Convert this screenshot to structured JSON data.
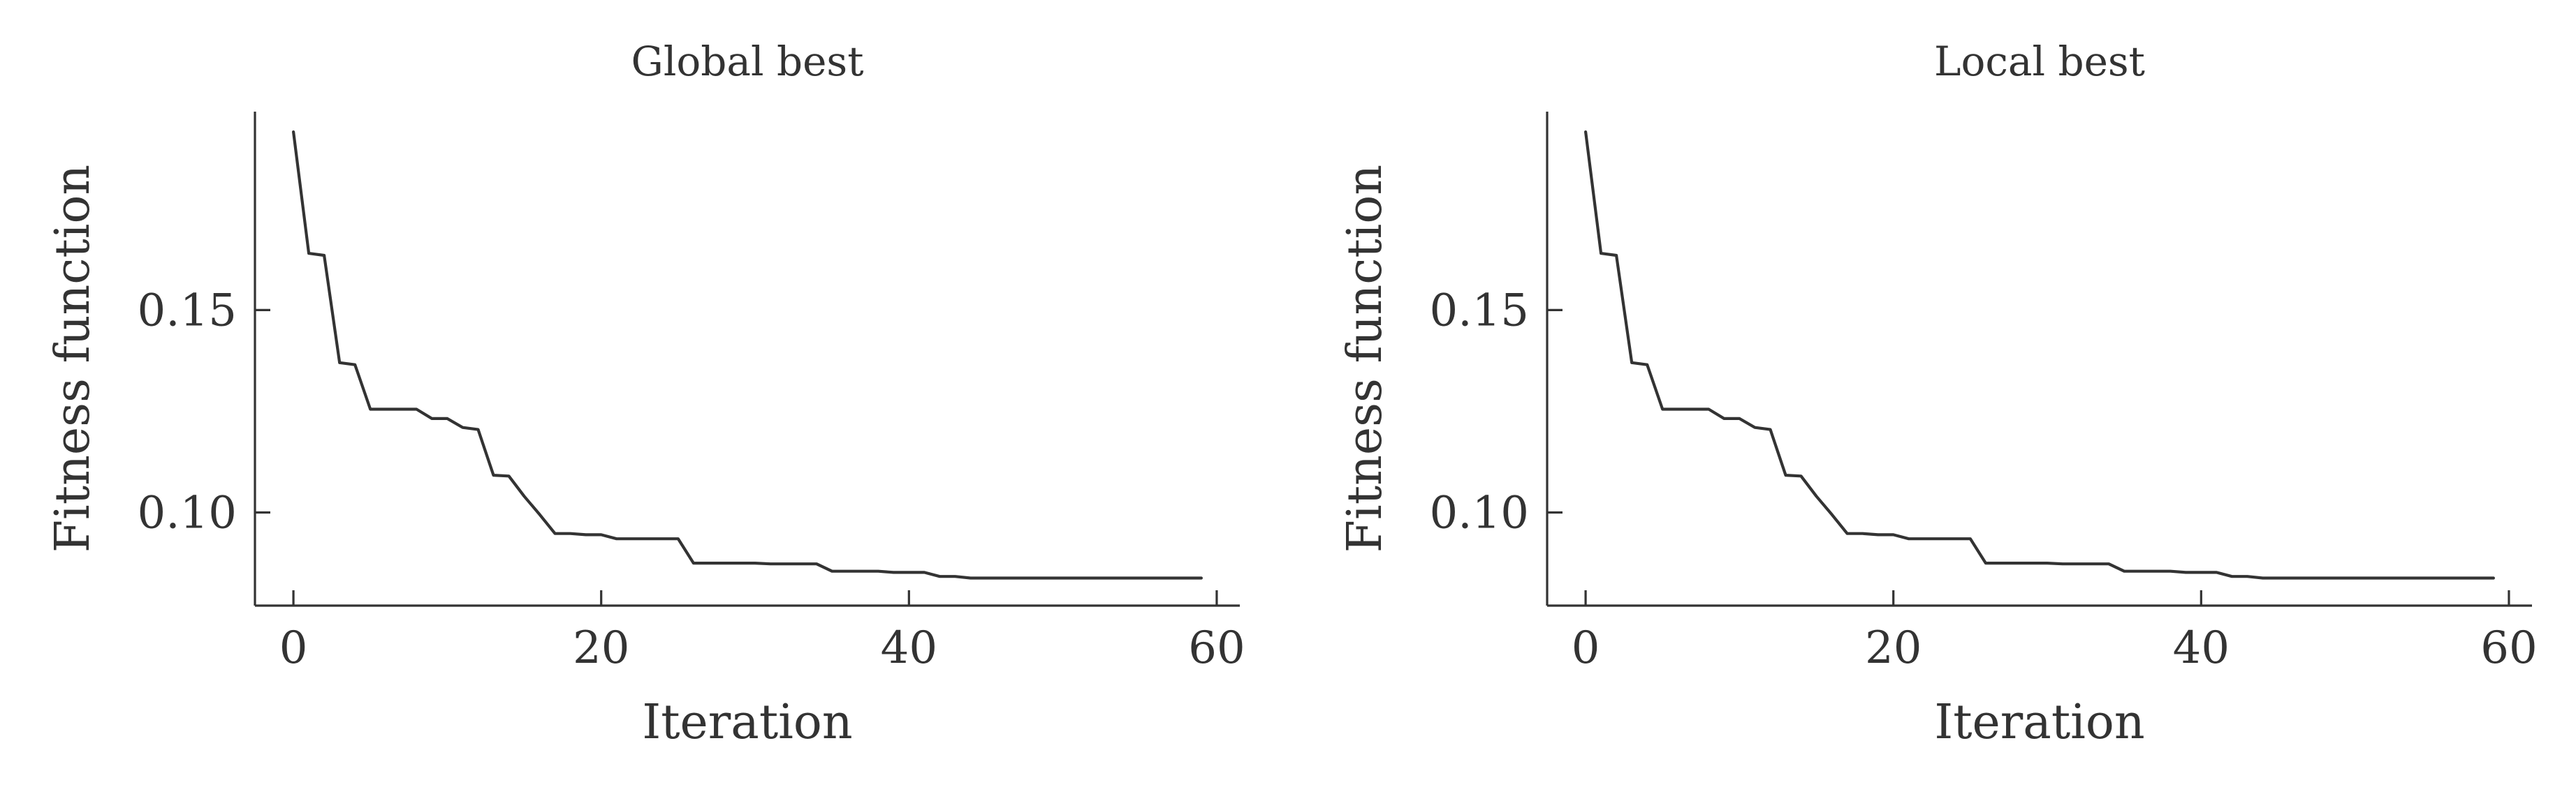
{
  "colors": {
    "background": "#ffffff",
    "axis": "#333333",
    "series_line": "#333333"
  },
  "chart_data": [
    {
      "type": "line",
      "title": "Global best",
      "xlabel": "Iteration",
      "ylabel": "Fitness function",
      "xlim": [
        -2.5,
        61.5
      ],
      "ylim": [
        0.077,
        0.199
      ],
      "xticks": [
        0,
        20,
        40,
        60
      ],
      "yticks": [
        0.1,
        0.15
      ],
      "xtick_labels": [
        "0",
        "20",
        "40",
        "60"
      ],
      "ytick_labels": [
        "0.10",
        "0.15"
      ],
      "grid": false,
      "series": [
        {
          "x": [
            0,
            1,
            2,
            3,
            4,
            5,
            6,
            7,
            8,
            9,
            10,
            11,
            12,
            13,
            14,
            15,
            16,
            17,
            18,
            19,
            20,
            21,
            22,
            23,
            24,
            25,
            26,
            27,
            28,
            29,
            30,
            31,
            32,
            33,
            34,
            35,
            36,
            37,
            38,
            39,
            40,
            41,
            42,
            43,
            44,
            45,
            46,
            47,
            48,
            49,
            50,
            51,
            52,
            53,
            54,
            55,
            56,
            57,
            58,
            59
          ],
          "values": [
            0.194,
            0.164,
            0.1635,
            0.137,
            0.1365,
            0.1255,
            0.1255,
            0.1255,
            0.1255,
            0.1232,
            0.1232,
            0.121,
            0.1205,
            0.1092,
            0.109,
            0.104,
            0.0995,
            0.0948,
            0.0948,
            0.0945,
            0.0945,
            0.0935,
            0.0935,
            0.0935,
            0.0935,
            0.0935,
            0.0875,
            0.0875,
            0.0875,
            0.0875,
            0.0875,
            0.0873,
            0.0873,
            0.0873,
            0.0873,
            0.0855,
            0.0855,
            0.0855,
            0.0855,
            0.0852,
            0.0852,
            0.0852,
            0.0842,
            0.0842,
            0.0838,
            0.0838,
            0.0838,
            0.0838,
            0.0838,
            0.0838,
            0.0838,
            0.0838,
            0.0838,
            0.0838,
            0.0838,
            0.0838,
            0.0838,
            0.0838,
            0.0838,
            0.0838
          ]
        }
      ]
    },
    {
      "type": "line",
      "title": "Local best",
      "xlabel": "Iteration",
      "ylabel": "Fitness function",
      "xlim": [
        -2.5,
        61.5
      ],
      "ylim": [
        0.077,
        0.199
      ],
      "xticks": [
        0,
        20,
        40,
        60
      ],
      "yticks": [
        0.1,
        0.15
      ],
      "xtick_labels": [
        "0",
        "20",
        "40",
        "60"
      ],
      "ytick_labels": [
        "0.10",
        "0.15"
      ],
      "grid": false,
      "series": [
        {
          "x": [
            0,
            1,
            2,
            3,
            4,
            5,
            6,
            7,
            8,
            9,
            10,
            11,
            12,
            13,
            14,
            15,
            16,
            17,
            18,
            19,
            20,
            21,
            22,
            23,
            24,
            25,
            26,
            27,
            28,
            29,
            30,
            31,
            32,
            33,
            34,
            35,
            36,
            37,
            38,
            39,
            40,
            41,
            42,
            43,
            44,
            45,
            46,
            47,
            48,
            49,
            50,
            51,
            52,
            53,
            54,
            55,
            56,
            57,
            58,
            59
          ],
          "values": [
            0.194,
            0.164,
            0.1635,
            0.137,
            0.1365,
            0.1255,
            0.1255,
            0.1255,
            0.1255,
            0.1232,
            0.1232,
            0.121,
            0.1205,
            0.1092,
            0.109,
            0.104,
            0.0995,
            0.0948,
            0.0948,
            0.0945,
            0.0945,
            0.0935,
            0.0935,
            0.0935,
            0.0935,
            0.0935,
            0.0875,
            0.0875,
            0.0875,
            0.0875,
            0.0875,
            0.0873,
            0.0873,
            0.0873,
            0.0873,
            0.0855,
            0.0855,
            0.0855,
            0.0855,
            0.0852,
            0.0852,
            0.0852,
            0.0842,
            0.0842,
            0.0838,
            0.0838,
            0.0838,
            0.0838,
            0.0838,
            0.0838,
            0.0838,
            0.0838,
            0.0838,
            0.0838,
            0.0838,
            0.0838,
            0.0838,
            0.0838,
            0.0838,
            0.0838
          ]
        }
      ]
    }
  ]
}
